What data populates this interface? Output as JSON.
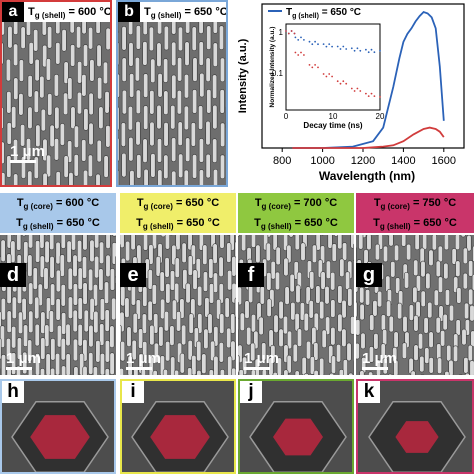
{
  "top_panels": [
    {
      "letter": "a",
      "title": "T",
      "sub": "g (shell)",
      "temp": " = 600 °C",
      "scale": "1 μm",
      "border": "#d33b3b"
    },
    {
      "letter": "b",
      "title": "T",
      "sub": "g (shell)",
      "temp": " = 650 °C",
      "scale": "",
      "border": "#7aa7d8"
    }
  ],
  "chart": {
    "legend_T": "T",
    "legend_sub": "g (shell)",
    "legend_temp": " = 650 °C",
    "ylabel": "Intensity (a.u.)",
    "xlabel": "Wavelength (nm)",
    "xticks": [
      "800",
      "1000",
      "1200",
      "1400",
      "1600"
    ],
    "inset_ylabel": "Normalized Intensity (a.u.)",
    "inset_xlabel": "Decay time (ns)",
    "inset_yticks": [
      "1",
      "0.1"
    ],
    "inset_xticks": [
      "0",
      "10",
      "20"
    ]
  },
  "chart_data": {
    "type": "line",
    "xlabel": "Wavelength (nm)",
    "ylabel": "Intensity (a.u.)",
    "xlim": [
      700,
      1700
    ],
    "series": [
      {
        "name": "T g (shell) = 650 °C",
        "color": "#2b62b8",
        "x": [
          850,
          1000,
          1150,
          1250,
          1300,
          1350,
          1380,
          1400,
          1420,
          1440,
          1460,
          1480,
          1500,
          1520,
          1540,
          1560,
          1580,
          1600
        ],
        "y": [
          0.0,
          0.0,
          0.01,
          0.05,
          0.15,
          0.45,
          0.66,
          0.78,
          0.84,
          0.88,
          0.93,
          0.97,
          1.0,
          0.99,
          0.96,
          0.88,
          0.6,
          0.2
        ]
      },
      {
        "color": "#d13c3c",
        "x": [
          850,
          1000,
          1200,
          1300,
          1350,
          1400,
          1450,
          1500,
          1530,
          1560,
          1580,
          1600
        ],
        "y": [
          0.0,
          0.0,
          0.0,
          0.01,
          0.02,
          0.05,
          0.1,
          0.14,
          0.15,
          0.14,
          0.12,
          0.08
        ]
      }
    ],
    "inset": {
      "xlabel": "Decay time (ns)",
      "ylabel": "Normalized Intensity (a.u.)",
      "xlim": [
        0,
        20
      ],
      "yscale": "log",
      "series": [
        {
          "color": "#2b62b8",
          "x": [
            0,
            2,
            5,
            8,
            11,
            14,
            17,
            20
          ],
          "y": [
            1.0,
            0.7,
            0.55,
            0.48,
            0.42,
            0.38,
            0.35,
            0.33
          ]
        },
        {
          "color": "#d13c3c",
          "x": [
            0,
            2,
            5,
            8,
            11,
            14,
            17,
            20
          ],
          "y": [
            1.0,
            0.3,
            0.15,
            0.09,
            0.06,
            0.04,
            0.03,
            0.025
          ]
        }
      ]
    }
  },
  "mid_panels": [
    {
      "letter": "d",
      "core_T": "T",
      "core_sub": "g (core)",
      "core_temp": " = 600 °C",
      "shell_T": "T",
      "shell_sub": "g (shell)",
      "shell_temp": " = 650 °C",
      "scale": "1 μm",
      "color": "#a8c8ea"
    },
    {
      "letter": "e",
      "core_T": "T",
      "core_sub": "g (core)",
      "core_temp": " = 650 °C",
      "shell_T": "T",
      "shell_sub": "g (shell)",
      "shell_temp": " = 650 °C",
      "scale": "1 μm",
      "color": "#f0ee6a"
    },
    {
      "letter": "f",
      "core_T": "T",
      "core_sub": "g (core)",
      "core_temp": " = 700 °C",
      "shell_T": "T",
      "shell_sub": "g (shell)",
      "shell_temp": " = 650 °C",
      "scale": "1 μm",
      "color": "#8fc840"
    },
    {
      "letter": "g",
      "core_T": "T",
      "core_sub": "g (core)",
      "core_temp": " = 750 °C",
      "shell_T": "T",
      "shell_sub": "g (shell)",
      "shell_temp": " = 650 °C",
      "scale": "1 μm",
      "color": "#c9356a"
    }
  ],
  "hex_panels": [
    {
      "letter": "h",
      "border": "#a8c8ea"
    },
    {
      "letter": "i",
      "border": "#e8e64a"
    },
    {
      "letter": "j",
      "border": "#6aa830"
    },
    {
      "letter": "k",
      "border": "#c9356a"
    }
  ]
}
